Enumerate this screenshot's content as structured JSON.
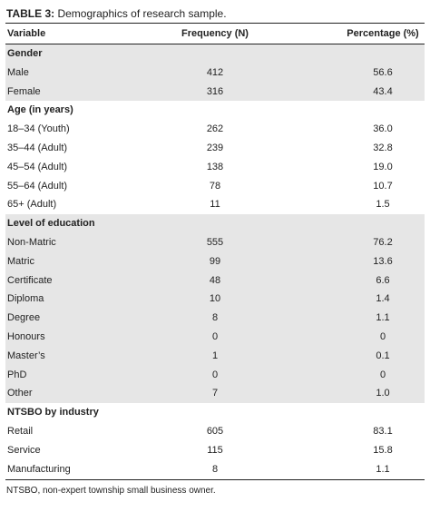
{
  "title": {
    "label": "TABLE 3:",
    "text": "Demographics of research sample."
  },
  "table": {
    "columns": [
      "Variable",
      "Frequency (N)",
      "Percentage (%)"
    ],
    "groups": [
      {
        "heading": "Gender",
        "rows": [
          [
            "Male",
            "412",
            "56.6"
          ],
          [
            "Female",
            "316",
            "43.4"
          ]
        ]
      },
      {
        "heading": "Age (in years)",
        "rows": [
          [
            "18–34 (Youth)",
            "262",
            "36.0"
          ],
          [
            "35–44 (Adult)",
            "239",
            "32.8"
          ],
          [
            "45–54 (Adult)",
            "138",
            "19.0"
          ],
          [
            "55–64 (Adult)",
            "78",
            "10.7"
          ],
          [
            "65+ (Adult)",
            "11",
            "1.5"
          ]
        ]
      },
      {
        "heading": "Level of education",
        "rows": [
          [
            "Non-Matric",
            "555",
            "76.2"
          ],
          [
            "Matric",
            "99",
            "13.6"
          ],
          [
            "Certificate",
            "48",
            "6.6"
          ],
          [
            "Diploma",
            "10",
            "1.4"
          ],
          [
            "Degree",
            "8",
            "1.1"
          ],
          [
            "Honours",
            "0",
            "0"
          ],
          [
            "Master’s",
            "1",
            "0.1"
          ],
          [
            "PhD",
            "0",
            "0"
          ],
          [
            "Other",
            "7",
            "1.0"
          ]
        ]
      },
      {
        "heading": "NTSBO by industry",
        "rows": [
          [
            "Retail",
            "605",
            "83.1"
          ],
          [
            "Service",
            "115",
            "15.8"
          ],
          [
            "Manufacturing",
            "8",
            "1.1"
          ]
        ]
      }
    ]
  },
  "footnote": "NTSBO, non-expert township small business owner."
}
